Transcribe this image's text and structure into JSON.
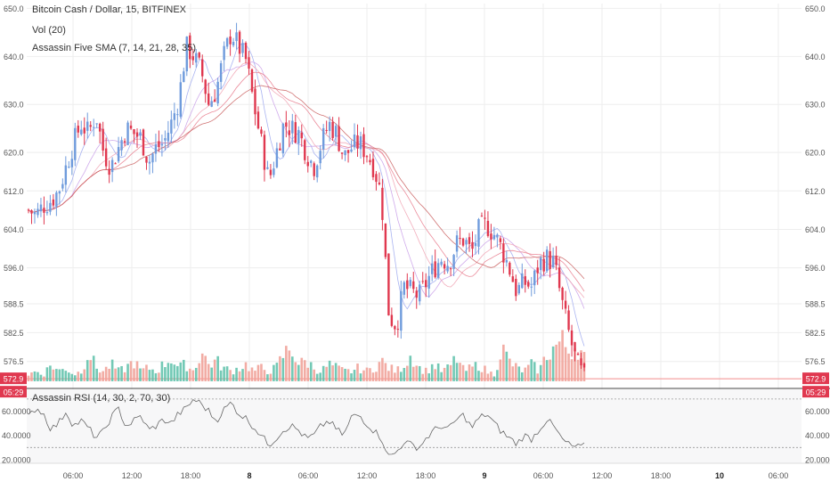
{
  "header": {
    "title": "Bitcoin Cash / Dollar, 15, BITFINEX",
    "volume_label": "Vol (20)",
    "sma_label": "Assassin Five SMA (7, 14, 21, 28, 35)",
    "rsi_label": "Assassin RSI (14, 30, 2, 70, 30)"
  },
  "colors": {
    "up": "#6f9bdc",
    "down": "#e0384f",
    "vol_up": "#5bbfa8",
    "vol_down": "#f09d94",
    "price_line": "#f28c8c",
    "rsi_line": "#666666",
    "grid": "#eeeeee",
    "bg_price": "#ffffff",
    "bg_rsi": "#f7f7f8"
  },
  "chart_data": [
    {
      "type": "candlestick",
      "title": "Bitcoin Cash / Dollar, 15, BITFINEX",
      "y_ticks": [
        650.0,
        640.0,
        630.0,
        620.0,
        612.0,
        604.0,
        596.0,
        588.5,
        582.5,
        576.5
      ],
      "y_tick_labels": [
        "650.0",
        "640.0",
        "630.0",
        "620.0",
        "612.0",
        "604.0",
        "596.0",
        "588.5",
        "582.5",
        "576.5"
      ],
      "ylim": [
        572.0,
        651.0
      ],
      "last_price_label": "572.9",
      "countdown_label": "05:29",
      "x_tick_labels": [
        "06:00",
        "12:00",
        "18:00",
        "8",
        "06:00",
        "12:00",
        "18:00",
        "9",
        "06:00",
        "12:00",
        "18:00",
        "10",
        "06:00"
      ],
      "ohlc_path": [
        608,
        607,
        609,
        610,
        612,
        617,
        622,
        626,
        624,
        628,
        620,
        617,
        621,
        625,
        624,
        623,
        618,
        621,
        622,
        626,
        631,
        642,
        640,
        637,
        630,
        633,
        640,
        645,
        642,
        639,
        630,
        622,
        614,
        620,
        626,
        625,
        624,
        620,
        617,
        622,
        626,
        624,
        619,
        621,
        622,
        620,
        617,
        611,
        586,
        584,
        592,
        591,
        590,
        593,
        596,
        598,
        597,
        601,
        602,
        599,
        604,
        605,
        603,
        600,
        596,
        591,
        593,
        592,
        597,
        598,
        597,
        589,
        582,
        576,
        573
      ],
      "sma_series": [
        {
          "name": "SMA 7"
        },
        {
          "name": "SMA 14"
        },
        {
          "name": "SMA 21"
        },
        {
          "name": "SMA 28"
        },
        {
          "name": "SMA 35"
        }
      ]
    },
    {
      "type": "bar",
      "title": "Vol (20)",
      "volume_profile": [
        2,
        3,
        2,
        5,
        3,
        4,
        2,
        3,
        9,
        4,
        3,
        5,
        3,
        4,
        6,
        3,
        4,
        3,
        5,
        7,
        4,
        5,
        3,
        9,
        5,
        6,
        4,
        3,
        4,
        5,
        3,
        4,
        3,
        4,
        8,
        10,
        5,
        6,
        4,
        3,
        5,
        4,
        3,
        3,
        4,
        3,
        4,
        6,
        4,
        3,
        5,
        8,
        4,
        3,
        5,
        3,
        4,
        7,
        3,
        4,
        5,
        3,
        2,
        10,
        6,
        4,
        3,
        5,
        3,
        8,
        10,
        12,
        9,
        11,
        7
      ],
      "spike_labels": [
        "",
        "",
        ""
      ]
    },
    {
      "type": "line",
      "title": "Assassin RSI (14, 30, 2, 70, 30)",
      "y_tick_labels": [
        "60.0000",
        "40.0000",
        "20.0000"
      ],
      "y_ticks": [
        60,
        40,
        20
      ],
      "ylim": [
        17,
        78
      ],
      "levels": [
        70,
        30
      ],
      "values": [
        55,
        63,
        58,
        45,
        50,
        60,
        48,
        52,
        46,
        38,
        43,
        55,
        62,
        47,
        52,
        56,
        44,
        48,
        53,
        50,
        58,
        62,
        70,
        66,
        60,
        52,
        61,
        67,
        58,
        54,
        47,
        40,
        32,
        38,
        45,
        48,
        44,
        37,
        40,
        48,
        52,
        45,
        40,
        55,
        57,
        50,
        44,
        38,
        22,
        26,
        35,
        32,
        30,
        38,
        44,
        48,
        45,
        53,
        57,
        46,
        54,
        58,
        50,
        43,
        38,
        33,
        40,
        37,
        45,
        53,
        47,
        37,
        32,
        30,
        31
      ]
    }
  ]
}
